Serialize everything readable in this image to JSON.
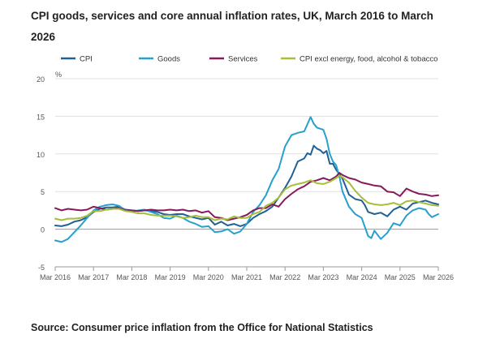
{
  "title": "CPI goods, services and core annual inflation rates, UK, March 2016 to March 2026",
  "source": "Source: Consumer price inflation from the Office for National Statistics",
  "chart_data": {
    "type": "line",
    "title": "CPI goods, services and core annual inflation rates, UK, March 2016 to March 2026",
    "ylabel": "%",
    "xlabel": "",
    "ylim": [
      -5,
      20
    ],
    "yticks": [
      -5,
      0,
      5,
      10,
      15,
      20
    ],
    "x_tick_labels": [
      "Mar 2016",
      "Mar 2017",
      "Mar 2018",
      "Mar 2019",
      "Mar 2020",
      "Mar 2021",
      "Mar 2022",
      "Mar 2023",
      "Mar 2024",
      "Mar 2025",
      "Mar 2026"
    ],
    "x_range_months": [
      0,
      120
    ],
    "grid": "horizontal",
    "legend_position": "top",
    "series": [
      {
        "name": "CPI",
        "color": "#206095",
        "points": [
          [
            0,
            0.5
          ],
          [
            2,
            0.4
          ],
          [
            4,
            0.6
          ],
          [
            6,
            1.0
          ],
          [
            8,
            1.2
          ],
          [
            10,
            1.6
          ],
          [
            12,
            2.3
          ],
          [
            14,
            2.7
          ],
          [
            16,
            2.9
          ],
          [
            18,
            2.9
          ],
          [
            20,
            3.0
          ],
          [
            22,
            2.6
          ],
          [
            24,
            2.5
          ],
          [
            26,
            2.4
          ],
          [
            28,
            2.5
          ],
          [
            30,
            2.4
          ],
          [
            32,
            2.3
          ],
          [
            34,
            2.0
          ],
          [
            36,
            1.9
          ],
          [
            38,
            2.0
          ],
          [
            40,
            2.0
          ],
          [
            42,
            1.7
          ],
          [
            44,
            1.5
          ],
          [
            46,
            1.3
          ],
          [
            48,
            1.5
          ],
          [
            50,
            0.6
          ],
          [
            52,
            1.0
          ],
          [
            54,
            0.5
          ],
          [
            56,
            0.7
          ],
          [
            58,
            0.4
          ],
          [
            60,
            0.7
          ],
          [
            62,
            1.5
          ],
          [
            64,
            2.0
          ],
          [
            66,
            2.4
          ],
          [
            68,
            3.0
          ],
          [
            70,
            4.2
          ],
          [
            72,
            5.5
          ],
          [
            74,
            7.0
          ],
          [
            76,
            9.0
          ],
          [
            78,
            9.4
          ],
          [
            79,
            10.1
          ],
          [
            80,
            9.9
          ],
          [
            81,
            11.1
          ],
          [
            82,
            10.7
          ],
          [
            83,
            10.5
          ],
          [
            84,
            10.1
          ],
          [
            85,
            10.4
          ],
          [
            86,
            8.7
          ],
          [
            87,
            8.7
          ],
          [
            88,
            7.9
          ],
          [
            90,
            6.7
          ],
          [
            92,
            4.6
          ],
          [
            94,
            4.0
          ],
          [
            96,
            3.8
          ],
          [
            97,
            3.2
          ],
          [
            98,
            2.3
          ],
          [
            100,
            2.0
          ],
          [
            102,
            2.2
          ],
          [
            104,
            1.7
          ],
          [
            106,
            2.6
          ],
          [
            108,
            3.0
          ],
          [
            110,
            2.6
          ],
          [
            112,
            3.4
          ],
          [
            114,
            3.6
          ],
          [
            116,
            3.8
          ],
          [
            118,
            3.5
          ],
          [
            120,
            3.3
          ]
        ]
      },
      {
        "name": "Goods",
        "color": "#27a0cc",
        "points": [
          [
            0,
            -1.5
          ],
          [
            2,
            -1.7
          ],
          [
            4,
            -1.3
          ],
          [
            6,
            -0.4
          ],
          [
            8,
            0.5
          ],
          [
            10,
            1.5
          ],
          [
            12,
            2.5
          ],
          [
            14,
            3.0
          ],
          [
            16,
            3.2
          ],
          [
            18,
            3.3
          ],
          [
            20,
            3.1
          ],
          [
            22,
            2.5
          ],
          [
            24,
            2.3
          ],
          [
            26,
            2.5
          ],
          [
            28,
            2.6
          ],
          [
            30,
            2.3
          ],
          [
            32,
            2.0
          ],
          [
            34,
            1.5
          ],
          [
            36,
            1.4
          ],
          [
            38,
            1.8
          ],
          [
            40,
            1.5
          ],
          [
            42,
            1.0
          ],
          [
            44,
            0.7
          ],
          [
            46,
            0.3
          ],
          [
            48,
            0.4
          ],
          [
            50,
            -0.4
          ],
          [
            52,
            -0.3
          ],
          [
            54,
            0.0
          ],
          [
            56,
            -0.6
          ],
          [
            58,
            -0.3
          ],
          [
            60,
            0.7
          ],
          [
            62,
            2.3
          ],
          [
            64,
            3.2
          ],
          [
            66,
            4.5
          ],
          [
            68,
            6.5
          ],
          [
            70,
            8.0
          ],
          [
            72,
            11.0
          ],
          [
            74,
            12.5
          ],
          [
            76,
            12.8
          ],
          [
            78,
            13.0
          ],
          [
            80,
            14.9
          ],
          [
            81,
            14.0
          ],
          [
            82,
            13.5
          ],
          [
            84,
            13.2
          ],
          [
            85,
            12.0
          ],
          [
            86,
            10.0
          ],
          [
            87,
            9.0
          ],
          [
            88,
            8.5
          ],
          [
            89,
            7.0
          ],
          [
            90,
            5.0
          ],
          [
            92,
            3.0
          ],
          [
            94,
            2.0
          ],
          [
            96,
            1.5
          ],
          [
            98,
            -0.9
          ],
          [
            99,
            -1.2
          ],
          [
            100,
            -0.2
          ],
          [
            102,
            -1.3
          ],
          [
            104,
            -0.5
          ],
          [
            106,
            0.8
          ],
          [
            108,
            0.5
          ],
          [
            110,
            1.8
          ],
          [
            112,
            2.5
          ],
          [
            114,
            2.8
          ],
          [
            116,
            2.6
          ],
          [
            117,
            2.0
          ],
          [
            118,
            1.6
          ],
          [
            120,
            2.0
          ]
        ]
      },
      {
        "name": "Services",
        "color": "#871a5b",
        "points": [
          [
            0,
            2.8
          ],
          [
            2,
            2.5
          ],
          [
            4,
            2.7
          ],
          [
            6,
            2.6
          ],
          [
            8,
            2.5
          ],
          [
            10,
            2.6
          ],
          [
            12,
            3.0
          ],
          [
            14,
            2.8
          ],
          [
            16,
            2.6
          ],
          [
            18,
            2.7
          ],
          [
            20,
            2.8
          ],
          [
            22,
            2.5
          ],
          [
            24,
            2.5
          ],
          [
            26,
            2.4
          ],
          [
            28,
            2.5
          ],
          [
            30,
            2.6
          ],
          [
            32,
            2.5
          ],
          [
            34,
            2.5
          ],
          [
            36,
            2.6
          ],
          [
            38,
            2.5
          ],
          [
            40,
            2.6
          ],
          [
            42,
            2.4
          ],
          [
            44,
            2.5
          ],
          [
            46,
            2.2
          ],
          [
            48,
            2.4
          ],
          [
            50,
            1.6
          ],
          [
            52,
            1.5
          ],
          [
            54,
            1.2
          ],
          [
            56,
            1.4
          ],
          [
            58,
            1.6
          ],
          [
            60,
            1.9
          ],
          [
            62,
            2.5
          ],
          [
            64,
            2.8
          ],
          [
            66,
            2.8
          ],
          [
            68,
            3.3
          ],
          [
            70,
            3.0
          ],
          [
            72,
            4.0
          ],
          [
            74,
            4.7
          ],
          [
            76,
            5.3
          ],
          [
            78,
            5.7
          ],
          [
            80,
            6.3
          ],
          [
            82,
            6.5
          ],
          [
            84,
            6.8
          ],
          [
            86,
            6.5
          ],
          [
            88,
            7.0
          ],
          [
            89,
            7.5
          ],
          [
            90,
            7.2
          ],
          [
            92,
            6.8
          ],
          [
            94,
            6.6
          ],
          [
            96,
            6.2
          ],
          [
            98,
            6.0
          ],
          [
            100,
            5.8
          ],
          [
            102,
            5.7
          ],
          [
            104,
            5.0
          ],
          [
            106,
            4.9
          ],
          [
            108,
            4.4
          ],
          [
            110,
            5.4
          ],
          [
            112,
            5.0
          ],
          [
            114,
            4.7
          ],
          [
            116,
            4.6
          ],
          [
            118,
            4.4
          ],
          [
            120,
            4.5
          ]
        ]
      },
      {
        "name": "CPI excl energy, food, alcohol & tobacco",
        "color": "#a8bd3a",
        "points": [
          [
            0,
            1.4
          ],
          [
            2,
            1.2
          ],
          [
            4,
            1.4
          ],
          [
            6,
            1.4
          ],
          [
            8,
            1.5
          ],
          [
            10,
            1.8
          ],
          [
            12,
            2.4
          ],
          [
            14,
            2.4
          ],
          [
            16,
            2.6
          ],
          [
            18,
            2.7
          ],
          [
            20,
            2.7
          ],
          [
            22,
            2.4
          ],
          [
            24,
            2.3
          ],
          [
            26,
            2.1
          ],
          [
            28,
            2.1
          ],
          [
            30,
            1.9
          ],
          [
            32,
            1.8
          ],
          [
            34,
            1.8
          ],
          [
            36,
            1.8
          ],
          [
            38,
            1.7
          ],
          [
            40,
            1.5
          ],
          [
            42,
            1.6
          ],
          [
            44,
            1.8
          ],
          [
            46,
            1.6
          ],
          [
            48,
            1.6
          ],
          [
            50,
            1.2
          ],
          [
            52,
            1.4
          ],
          [
            54,
            1.3
          ],
          [
            56,
            1.7
          ],
          [
            58,
            1.5
          ],
          [
            60,
            1.5
          ],
          [
            62,
            2.0
          ],
          [
            64,
            2.3
          ],
          [
            66,
            3.1
          ],
          [
            68,
            3.5
          ],
          [
            70,
            4.2
          ],
          [
            72,
            5.3
          ],
          [
            74,
            5.8
          ],
          [
            76,
            6.0
          ],
          [
            78,
            6.2
          ],
          [
            80,
            6.5
          ],
          [
            82,
            6.1
          ],
          [
            84,
            6.0
          ],
          [
            86,
            6.3
          ],
          [
            88,
            6.8
          ],
          [
            89,
            7.1
          ],
          [
            90,
            6.9
          ],
          [
            92,
            6.2
          ],
          [
            94,
            5.1
          ],
          [
            96,
            4.2
          ],
          [
            98,
            3.5
          ],
          [
            100,
            3.3
          ],
          [
            102,
            3.2
          ],
          [
            104,
            3.3
          ],
          [
            106,
            3.5
          ],
          [
            108,
            3.2
          ],
          [
            110,
            3.7
          ],
          [
            112,
            3.8
          ],
          [
            114,
            3.6
          ],
          [
            116,
            3.4
          ],
          [
            118,
            3.2
          ],
          [
            120,
            3.1
          ]
        ]
      }
    ]
  }
}
